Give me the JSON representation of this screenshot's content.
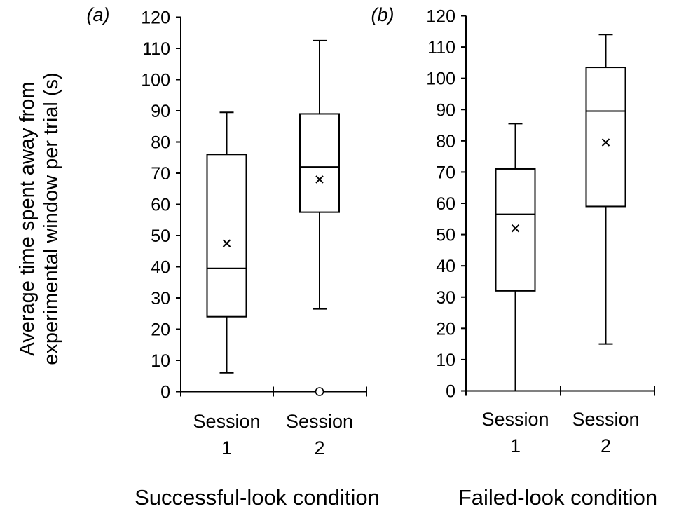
{
  "chart_data": [
    {
      "type": "box",
      "panel_label": "(a)",
      "xlabel": "Successful-look condition",
      "ylabel": "Average time spent away from experimental window per trial (s)",
      "ylabel_lines": [
        "Average time spent away from",
        "experimental window per trial (s)"
      ],
      "yticks": [
        0,
        10,
        20,
        30,
        40,
        50,
        60,
        70,
        80,
        90,
        100,
        110,
        120
      ],
      "ylim": [
        0,
        120
      ],
      "categories": [
        {
          "line1": "Session",
          "line2": "1"
        },
        {
          "line1": "Session",
          "line2": "2"
        }
      ],
      "boxes": [
        {
          "whisker_low": 6,
          "q1": 24,
          "median": 39.5,
          "q3": 76,
          "whisker_high": 89.5,
          "mean": 47.5,
          "outliers": []
        },
        {
          "whisker_low": 26.5,
          "q1": 57.5,
          "median": 72,
          "q3": 89,
          "whisker_high": 112.5,
          "mean": 68,
          "outliers": [
            0
          ]
        }
      ]
    },
    {
      "type": "box",
      "panel_label": "(b)",
      "xlabel": "Failed-look condition",
      "yticks": [
        0,
        10,
        20,
        30,
        40,
        50,
        60,
        70,
        80,
        90,
        100,
        110,
        120
      ],
      "ylim": [
        0,
        120
      ],
      "categories": [
        {
          "line1": "Session",
          "line2": "1"
        },
        {
          "line1": "Session",
          "line2": "2"
        }
      ],
      "boxes": [
        {
          "whisker_low": 0,
          "q1": 32,
          "median": 56.5,
          "q3": 71,
          "whisker_high": 85.5,
          "mean": 52,
          "outliers": []
        },
        {
          "whisker_low": 15,
          "q1": 59,
          "median": 89.5,
          "q3": 103.5,
          "whisker_high": 114,
          "mean": 79.5,
          "outliers": []
        }
      ]
    }
  ]
}
